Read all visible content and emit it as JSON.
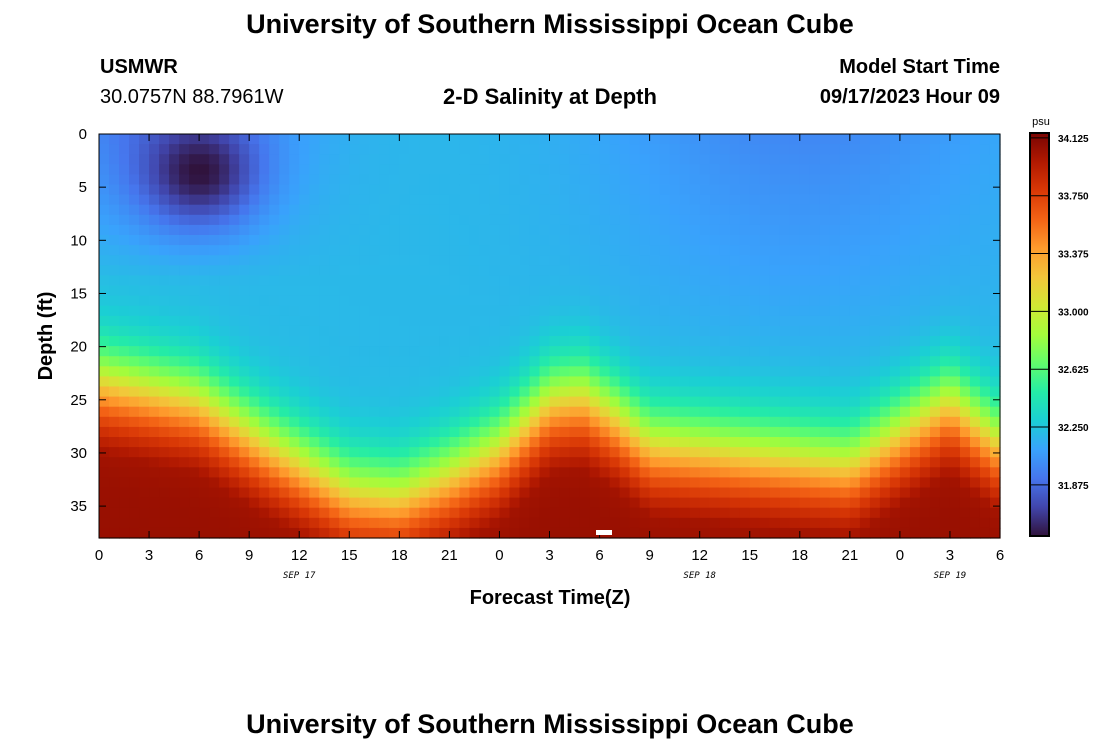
{
  "header": {
    "title": "University of Southern Mississippi Ocean Cube",
    "station": "USMWR",
    "coords": "30.0757N  88.7961W",
    "subtitle": "2-D Salinity at Depth",
    "model_start_label": "Model Start Time",
    "model_start_value": "09/17/2023 Hour 09"
  },
  "footer": {
    "title": "University of Southern Mississippi Ocean Cube"
  },
  "chart_data": {
    "type": "heatmap",
    "title": "2-D Salinity at Depth",
    "xlabel": "Forecast Time(Z)",
    "ylabel": "Depth (ft)",
    "x_hours": [
      0,
      54
    ],
    "x_ticks": [
      0,
      3,
      6,
      9,
      12,
      15,
      18,
      21,
      24,
      27,
      30,
      33,
      36,
      39,
      42,
      45,
      48,
      51,
      54
    ],
    "x_tick_labels": [
      "0",
      "3",
      "6",
      "9",
      "12",
      "15",
      "18",
      "21",
      "0",
      "3",
      "6",
      "9",
      "12",
      "15",
      "18",
      "21",
      "0",
      "3",
      "6"
    ],
    "date_labels": [
      {
        "label": "SEP 17",
        "hour": 12
      },
      {
        "label": "SEP 18",
        "hour": 36
      },
      {
        "label": "SEP 19",
        "hour": 51
      }
    ],
    "ylim": [
      0,
      38
    ],
    "y_ticks": [
      0,
      5,
      10,
      15,
      20,
      25,
      30,
      35
    ],
    "colorbar": {
      "unit": "psu",
      "range": [
        31.55,
        34.15
      ],
      "ticks": [
        31.875,
        32.25,
        32.625,
        33.0,
        33.375,
        33.75,
        34.125
      ],
      "tick_labels": [
        "31.875",
        "32.250",
        "32.625",
        "33.000",
        "33.375",
        "33.750",
        "34.125"
      ],
      "colors": [
        "#30123b",
        "#4145ab",
        "#4675ed",
        "#39a2fc",
        "#1bcfd4",
        "#24eca6",
        "#61fc6c",
        "#a4fc3b",
        "#d1e834",
        "#f3c63a",
        "#fe9b2d",
        "#f36315",
        "#d93806",
        "#b11901",
        "#7a0402"
      ]
    },
    "salinity_model": {
      "description": "salinity by depth: fresh surface layer over saltier bottom layer; boundary depth varies with time",
      "interface_depth_by_hour": [
        [
          0,
          22
        ],
        [
          6,
          24
        ],
        [
          10,
          28
        ],
        [
          15,
          32.5
        ],
        [
          18,
          33
        ],
        [
          21,
          31
        ],
        [
          24,
          28.5
        ],
        [
          27,
          24
        ],
        [
          29,
          23.5
        ],
        [
          31,
          25.5
        ],
        [
          33,
          28
        ],
        [
          36,
          28.5
        ],
        [
          39,
          29
        ],
        [
          42,
          29.5
        ],
        [
          45,
          30
        ],
        [
          48,
          27
        ],
        [
          51,
          24
        ],
        [
          54,
          28
        ]
      ],
      "fresh_core": {
        "hour": 6,
        "depth": 3.5,
        "min_psu": 31.55
      }
    }
  }
}
